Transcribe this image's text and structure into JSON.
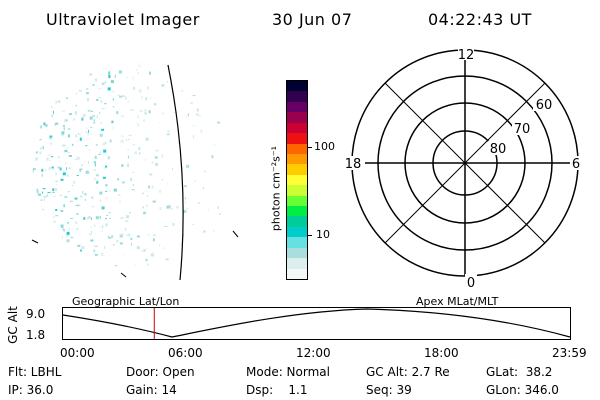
{
  "header": {
    "instrument": "Ultraviolet Imager",
    "date": "30 Jun 07",
    "time": "04:22:43 UT"
  },
  "colorbar": {
    "unit_label": "photon cm⁻²s⁻¹",
    "ticks": [
      "100",
      "10"
    ],
    "colors": [
      "#000033",
      "#33004d",
      "#660066",
      "#99004d",
      "#cc0033",
      "#ee1111",
      "#ff6600",
      "#ff9900",
      "#ffcc00",
      "#ffff33",
      "#ccff33",
      "#66ff33",
      "#00ee44",
      "#00cc99",
      "#00cccc",
      "#66e0e0",
      "#aadddd",
      "#ddeeee",
      "#f4f8f8"
    ]
  },
  "polar_plot": {
    "mlt_labels": {
      "top": "12",
      "left": "18",
      "right": "6",
      "bottom": "0"
    },
    "lat_labels": [
      "60",
      "70",
      "80"
    ]
  },
  "timeline": {
    "left_title": "Geographic Lat/Lon",
    "right_title": "Apex MLat/MLT",
    "axis_label": "GC Alt",
    "y_labels": [
      "9.0",
      "1.8"
    ],
    "x_labels": [
      "00:00",
      "06:00",
      "12:00",
      "18:00",
      "23:59"
    ],
    "current_time_fraction": 0.18
  },
  "info": {
    "flt": "Flt: LBHL",
    "ip": "IP: 36.0",
    "door": "Door: Open",
    "gain": "Gain: 14",
    "mode": "Mode: Normal",
    "dsp": "Dsp:    1.1",
    "gcalt": "GC Alt: 2.7 Re",
    "seq": "Seq: 39",
    "glat": "GLat:  38.2",
    "glon": "GLon: 346.0"
  }
}
